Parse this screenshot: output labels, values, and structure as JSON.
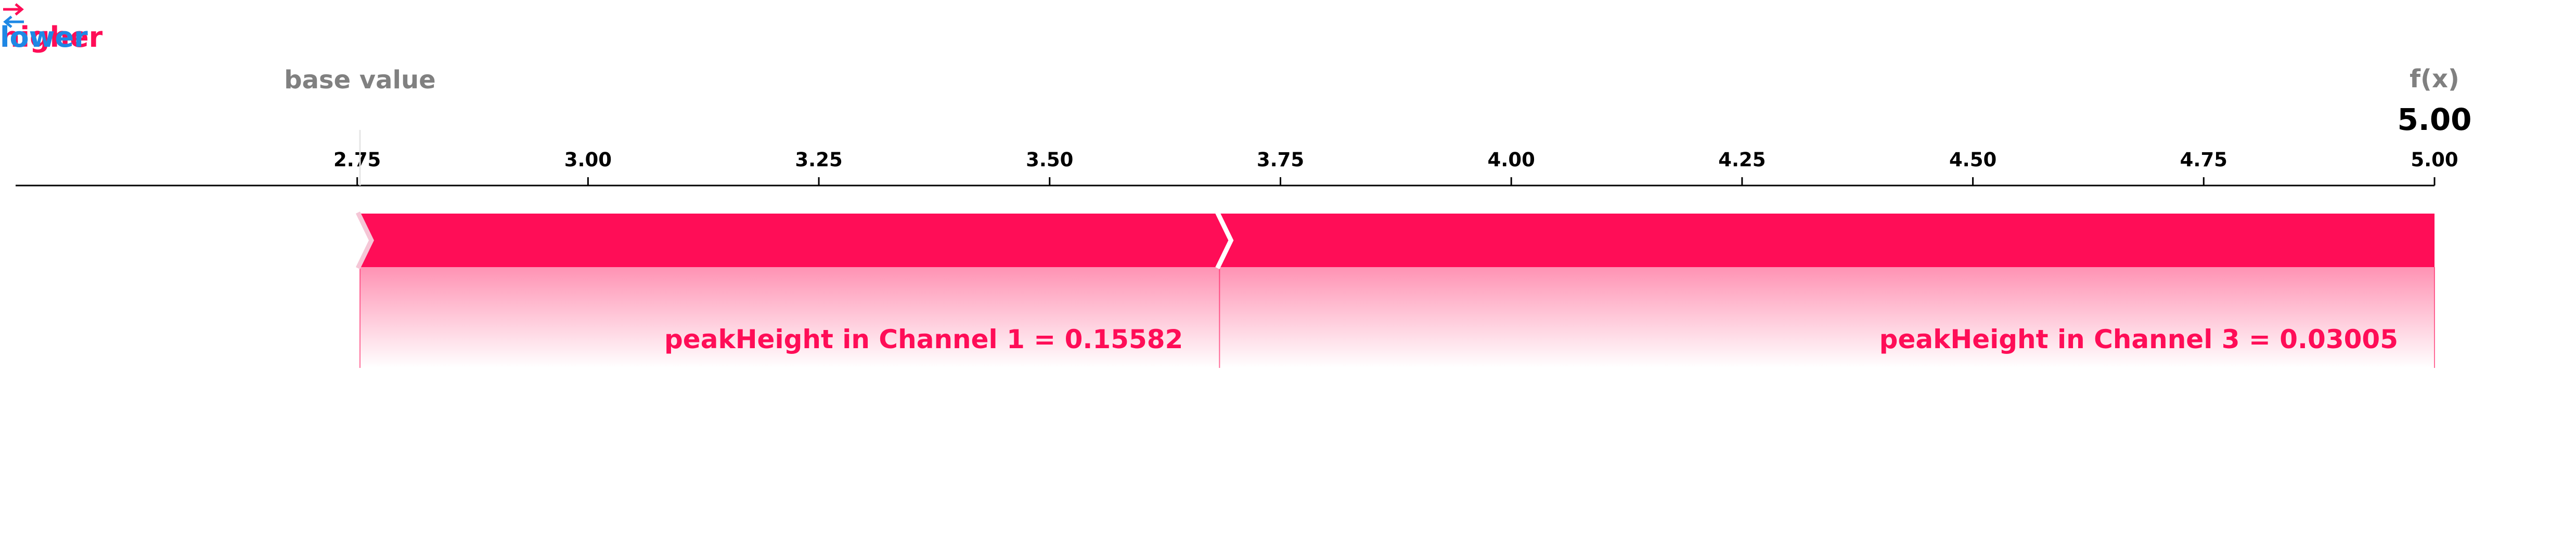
{
  "legend": {
    "higher_label": "higher",
    "arrow_symbol": "⇄",
    "lower_label": "lower",
    "higher_color": "#ff0d57",
    "lower_color": "#1e88e5"
  },
  "chart_data": {
    "type": "force_plot",
    "base_value_label": "base value",
    "output_label": "f(x)",
    "output_value": 5.0,
    "output_value_text": "5.00",
    "base_value": 2.753,
    "xlim": [
      2.38,
      5.0
    ],
    "ticks": [
      2.75,
      3.0,
      3.25,
      3.5,
      3.75,
      4.0,
      4.25,
      4.5,
      4.75,
      5.0
    ],
    "tick_labels": [
      "2.75",
      "3.00",
      "3.25",
      "3.50",
      "3.75",
      "4.00",
      "4.25",
      "4.50",
      "4.75",
      "5.00"
    ],
    "features": [
      {
        "label": "peakHeight in Channel 1 = 0.15582",
        "start": 2.753,
        "end": 3.684,
        "direction": "higher"
      },
      {
        "label": "peakHeight in Channel 3 = 0.03005",
        "start": 3.684,
        "end": 5.0,
        "direction": "higher"
      }
    ],
    "colors": {
      "positive": "#ff0d57",
      "base_label": "#808080",
      "axis": "#000000"
    }
  }
}
